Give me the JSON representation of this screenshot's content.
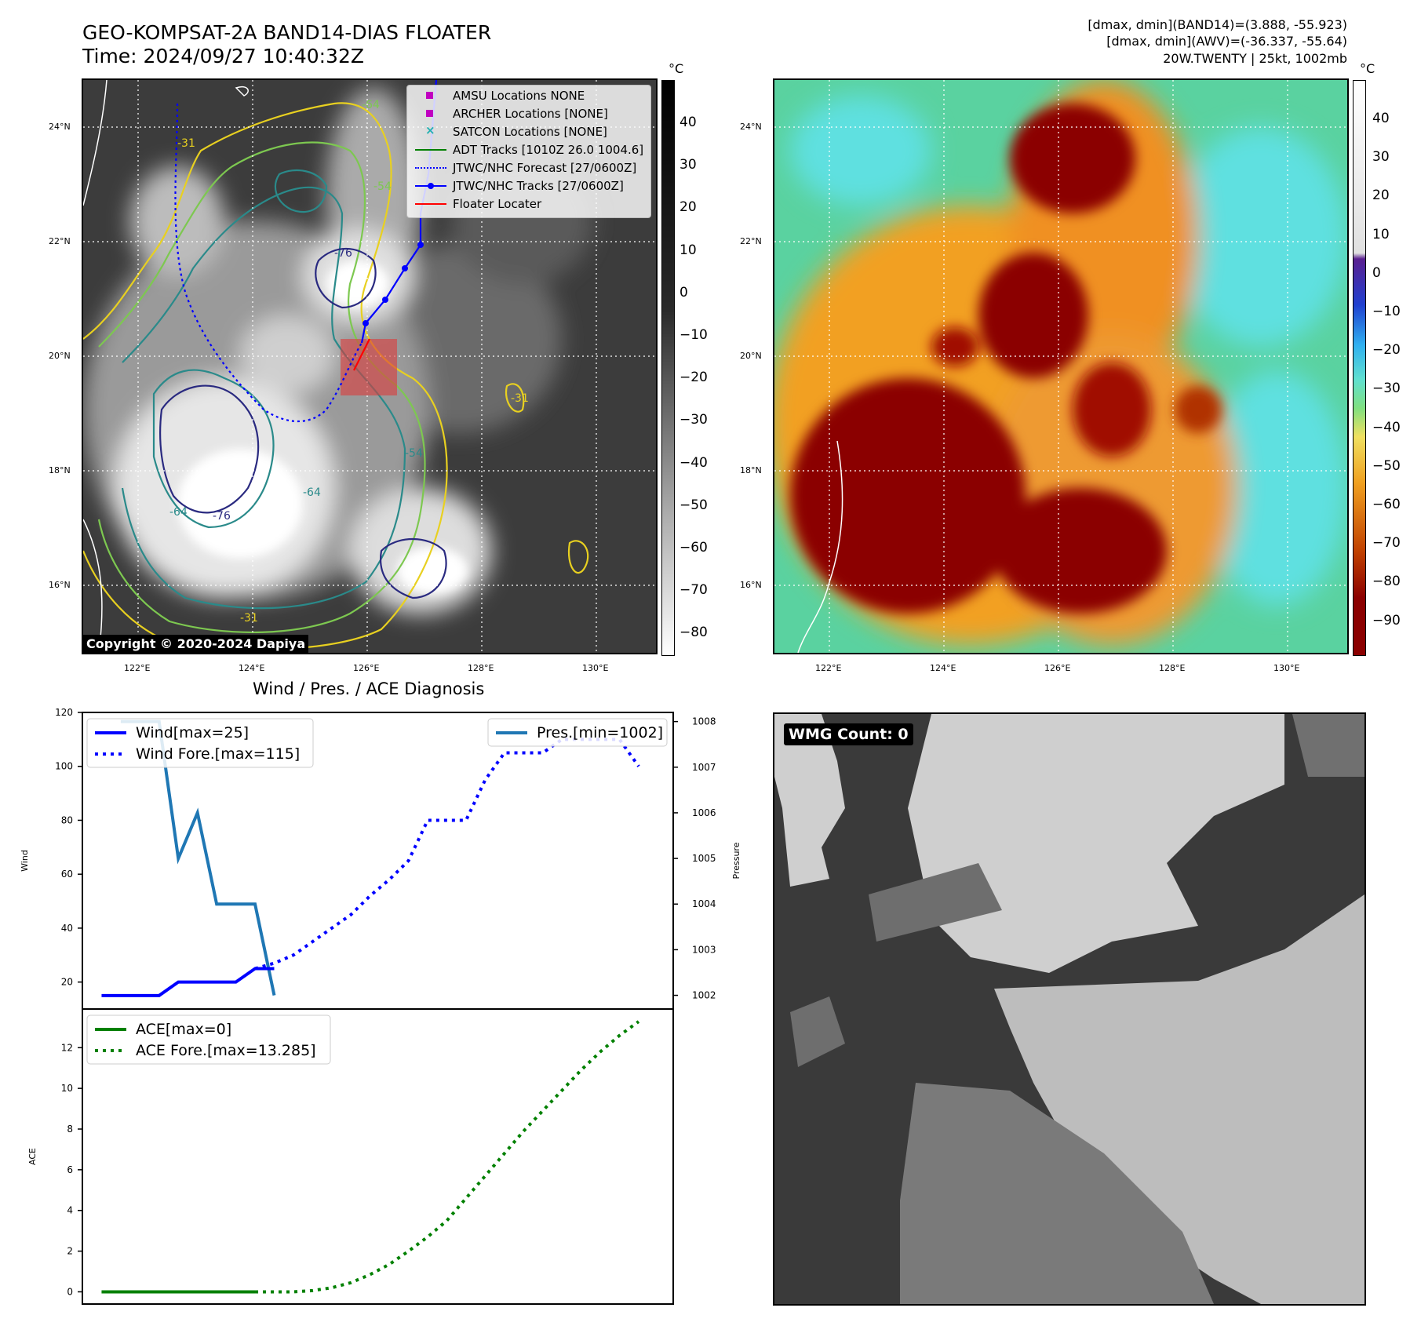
{
  "header": {
    "title_line1": "GEO-KOMPSAT-2A BAND14-DIAS FLOATER",
    "title_line2": "Time: 2024/09/27 10:40:32Z",
    "info_line1": "[dmax, dmin](BAND14)=(3.888, -55.923)",
    "info_line2": "[dmax, dmin](AWV)=(-36.337, -55.64)",
    "info_line3": "20W.TWENTY | 25kt, 1002mb"
  },
  "maps": {
    "lat_labels": [
      "24°N",
      "22°N",
      "20°N",
      "18°N",
      "16°N"
    ],
    "lon_labels": [
      "122°E",
      "124°E",
      "126°E",
      "128°E",
      "130°E"
    ],
    "copyright": "Copyright © 2020-2024 Dapiya",
    "unit": "°C",
    "gray_colorbar_ticks": [
      "40",
      "30",
      "20",
      "10",
      "0",
      "−10",
      "−20",
      "−30",
      "−40",
      "−50",
      "−60",
      "−70",
      "−80"
    ],
    "color_colorbar_ticks": [
      "40",
      "30",
      "20",
      "10",
      "0",
      "−10",
      "−20",
      "−30",
      "−40",
      "−50",
      "−60",
      "−70",
      "−80",
      "−90"
    ],
    "contour_labels": [
      "-64",
      "-54",
      "-76",
      "-31",
      "-64",
      "-54",
      "-76",
      "-64",
      "-31",
      "-31"
    ],
    "legend": [
      {
        "label": "AMSU Locations NONE",
        "color": "#c000c0",
        "kind": "square"
      },
      {
        "label": "ARCHER Locations [NONE]",
        "color": "#c000c0",
        "kind": "square"
      },
      {
        "label": "SATCON Locations [NONE]",
        "color": "#20b0b0",
        "kind": "x"
      },
      {
        "label": "ADT Tracks [1010Z 26.0 1004.6]",
        "color": "#008000",
        "kind": "line"
      },
      {
        "label": "JTWC/NHC Forecast [27/0600Z]",
        "color": "#0000ff",
        "kind": "dotted"
      },
      {
        "label": "JTWC/NHC Tracks [27/0600Z]",
        "color": "#0000ff",
        "kind": "line-dot"
      },
      {
        "label": "Floater Locater",
        "color": "#ff0000",
        "kind": "line"
      }
    ]
  },
  "wmg": {
    "label": "WMG Count: 0"
  },
  "chart_data": [
    {
      "type": "line",
      "title": "Wind / Pres. / ACE Diagnosis",
      "ylabel": "Wind",
      "ylabel_right": "Pressure",
      "ylim": [
        10,
        120
      ],
      "ylim_right": [
        1001.7,
        1008.2
      ],
      "yticks": [
        20,
        40,
        60,
        80,
        100,
        120
      ],
      "yticks_right": [
        1002,
        1003,
        1004,
        1005,
        1006,
        1007,
        1008
      ],
      "legend_left": [
        "Wind[max=25]",
        "Wind Fore.[max=115]"
      ],
      "legend_right": [
        "Pres.[min=1002]"
      ],
      "x": [
        0,
        1,
        2,
        3,
        4,
        5,
        6,
        7,
        8,
        9,
        10,
        11,
        12,
        13,
        14,
        15,
        16,
        17,
        18,
        19,
        20,
        21,
        22,
        23,
        24,
        25,
        26,
        27,
        28
      ],
      "series": [
        {
          "name": "Wind[max=25]",
          "color": "#0000ff",
          "style": "solid",
          "x": [
            0,
            1,
            2,
            3,
            4,
            5,
            6,
            7,
            8,
            9
          ],
          "values": [
            15,
            15,
            15,
            15,
            20,
            20,
            20,
            20,
            25,
            25
          ]
        },
        {
          "name": "Wind Fore.[max=115]",
          "color": "#0000ff",
          "style": "dotted",
          "x": [
            8,
            9,
            10,
            11,
            12,
            13,
            14,
            15,
            16,
            17,
            18,
            19,
            20,
            21,
            22,
            23,
            24,
            25,
            26,
            27,
            28
          ],
          "values": [
            25,
            27,
            30,
            35,
            40,
            45,
            52,
            58,
            65,
            80,
            80,
            80,
            95,
            105,
            105,
            105,
            110,
            110,
            110,
            110,
            100
          ]
        },
        {
          "name": "Pres.[min=1002]",
          "color": "#1f77b4",
          "style": "solid",
          "axis": "right",
          "x": [
            1,
            2,
            3,
            4,
            5,
            6,
            7,
            8,
            9
          ],
          "values": [
            1008,
            1008,
            1008,
            1005,
            1006,
            1004,
            1004,
            1004,
            1002
          ]
        }
      ]
    },
    {
      "type": "line",
      "ylabel": "ACE",
      "ylim": [
        -0.6,
        13.9
      ],
      "yticks": [
        0,
        2,
        4,
        6,
        8,
        10,
        12
      ],
      "legend_left": [
        "ACE[max=0]",
        "ACE Fore.[max=13.285]"
      ],
      "x": [
        0,
        1,
        2,
        3,
        4,
        5,
        6,
        7,
        8,
        9,
        10,
        11,
        12,
        13,
        14,
        15,
        16,
        17,
        18,
        19,
        20,
        21,
        22,
        23,
        24,
        25,
        26,
        27,
        28
      ],
      "series": [
        {
          "name": "ACE[max=0]",
          "color": "#008000",
          "style": "solid",
          "x": [
            0,
            1,
            2,
            3,
            4,
            5,
            6,
            7,
            8
          ],
          "values": [
            0,
            0,
            0,
            0,
            0,
            0,
            0,
            0,
            0
          ]
        },
        {
          "name": "ACE Fore.[max=13.285]",
          "color": "#008000",
          "style": "dotted",
          "x": [
            8,
            9,
            10,
            11,
            12,
            13,
            14,
            15,
            16,
            17,
            18,
            19,
            20,
            21,
            22,
            23,
            24,
            25,
            26,
            27,
            28
          ],
          "values": [
            0,
            0,
            0,
            0.06,
            0.2,
            0.45,
            0.85,
            1.35,
            2.0,
            2.7,
            3.5,
            4.6,
            5.7,
            6.8,
            7.9,
            8.9,
            9.9,
            10.9,
            11.8,
            12.6,
            13.285
          ]
        }
      ]
    }
  ]
}
